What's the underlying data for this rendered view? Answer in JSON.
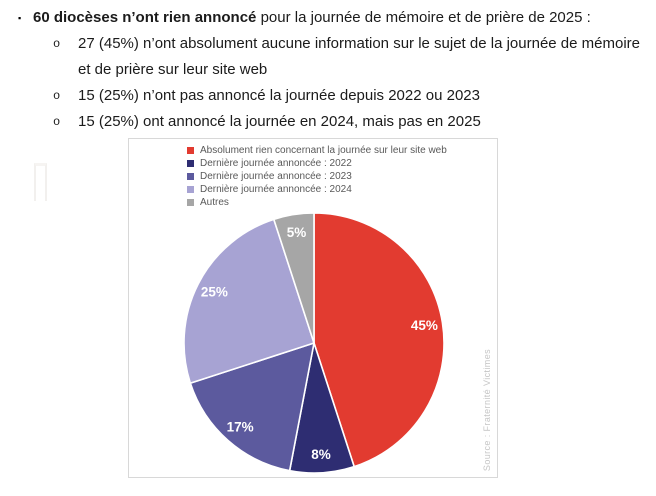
{
  "document": {
    "main_bullet": {
      "marker": "▪",
      "bold": "60 diocèses n’ont rien annoncé",
      "rest": " pour la journée de mémoire et de prière de 2025 :"
    },
    "sub_marker": "o",
    "sub_bullets": [
      "27 (45%) n’ont absolument aucune information sur le sujet de la journée de mémoire et de prière sur leur site web",
      "15 (25%) n’ont pas annoncé la journée depuis 2022 ou 2023",
      "15 (25%) ont annoncé la journée en 2024, mais pas en 2025"
    ]
  },
  "chart_data": {
    "type": "pie",
    "title": "",
    "legend_position": "top-left-inside",
    "direction": "clockwise",
    "start_angle_deg": 0,
    "categories": [
      "Absolument rien concernant la journée sur leur site web",
      "Dernière journée annoncée : 2022",
      "Dernière journée annoncée : 2023",
      "Dernière journée annoncée : 2024",
      "Autres"
    ],
    "values": [
      45,
      8,
      17,
      25,
      5
    ],
    "unit": "%",
    "slice_labels": [
      "45%",
      "8%",
      "17%",
      "25%",
      "5%"
    ],
    "colors": [
      "#E23B30",
      "#2E2D72",
      "#5C5A9E",
      "#A7A3D3",
      "#A6A6A6"
    ],
    "label_color": "#FFFFFF",
    "source_note": "Source : Fraternité Victimes"
  }
}
